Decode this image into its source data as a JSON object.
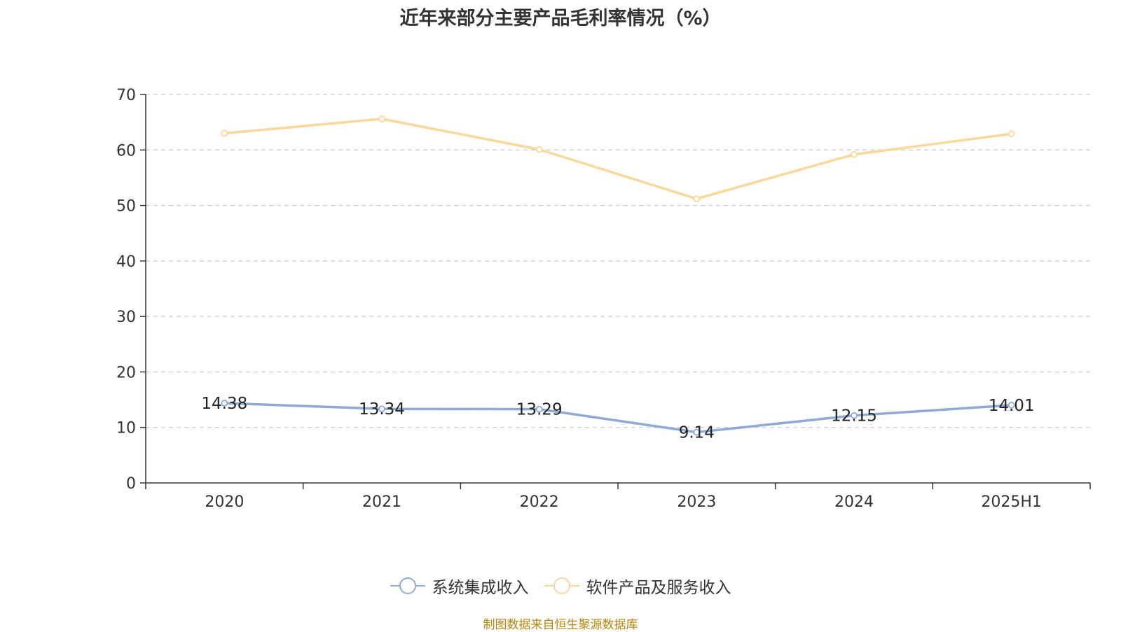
{
  "chart_data": {
    "type": "line",
    "title": "近年来部分主要产品毛利率情况（%）",
    "categories": [
      "2020",
      "2021",
      "2022",
      "2023",
      "2024",
      "2025H1"
    ],
    "series": [
      {
        "name": "系统集成收入",
        "values": [
          14.38,
          13.34,
          13.29,
          9.14,
          12.15,
          14.01
        ],
        "color": "#8eaad6",
        "show_labels": true
      },
      {
        "name": "软件产品及服务收入",
        "values": [
          63.0,
          65.6,
          60.1,
          51.2,
          59.2,
          62.9
        ],
        "color": "#f9d89a",
        "show_labels": false
      }
    ],
    "ylim": [
      0,
      70
    ],
    "yticks": [
      0,
      10,
      20,
      30,
      40,
      50,
      60,
      70
    ],
    "grid": true,
    "legend": "bottom-center"
  },
  "footer": {
    "source": "制图数据来自恒生聚源数据库"
  }
}
